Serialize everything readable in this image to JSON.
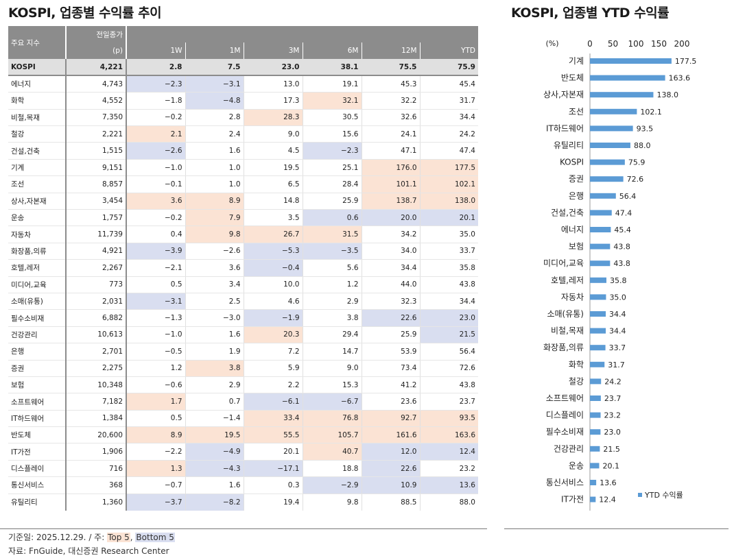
{
  "left_title": "KOSPI, 업종별 수익률 추이",
  "right_title": "KOSPI, 업종별 YTD 수익률",
  "table": {
    "header": {
      "name": "주요 지수",
      "close_top": "전일종가",
      "close_unit": "(p)",
      "periods": [
        "1W",
        "1M",
        "3M",
        "6M",
        "12M",
        "YTD"
      ]
    },
    "rows": [
      {
        "name": "KOSPI",
        "close": "4,221",
        "vals": [
          "2.8",
          "7.5",
          "23.0",
          "38.1",
          "75.5",
          "75.9"
        ],
        "hl": [
          "",
          "",
          "",
          "",
          "",
          ""
        ]
      },
      {
        "name": "에너지",
        "close": "4,743",
        "vals": [
          "−2.3",
          "−3.1",
          "13.0",
          "19.1",
          "45.3",
          "45.4"
        ],
        "hl": [
          "bot",
          "bot",
          "",
          "",
          "",
          ""
        ]
      },
      {
        "name": "화학",
        "close": "4,552",
        "vals": [
          "−1.8",
          "−4.8",
          "17.3",
          "32.1",
          "32.2",
          "31.7"
        ],
        "hl": [
          "",
          "bot",
          "",
          "top",
          "",
          ""
        ]
      },
      {
        "name": "비철,목재",
        "close": "7,350",
        "vals": [
          "−0.2",
          "2.8",
          "28.3",
          "30.5",
          "32.6",
          "34.4"
        ],
        "hl": [
          "",
          "",
          "top",
          "",
          "",
          ""
        ]
      },
      {
        "name": "철강",
        "close": "2,221",
        "vals": [
          "2.1",
          "2.4",
          "9.0",
          "15.6",
          "24.1",
          "24.2"
        ],
        "hl": [
          "top",
          "",
          "",
          "",
          "",
          ""
        ]
      },
      {
        "name": "건설,건축",
        "close": "1,515",
        "vals": [
          "−2.6",
          "1.6",
          "4.5",
          "−2.3",
          "47.1",
          "47.4"
        ],
        "hl": [
          "bot",
          "",
          "",
          "bot",
          "",
          ""
        ]
      },
      {
        "name": "기계",
        "close": "9,151",
        "vals": [
          "−1.0",
          "1.0",
          "19.5",
          "25.1",
          "176.0",
          "177.5"
        ],
        "hl": [
          "",
          "",
          "",
          "",
          "top",
          "top"
        ]
      },
      {
        "name": "조선",
        "close": "8,857",
        "vals": [
          "−0.1",
          "1.0",
          "6.5",
          "28.4",
          "101.1",
          "102.1"
        ],
        "hl": [
          "",
          "",
          "",
          "",
          "top",
          "top"
        ]
      },
      {
        "name": "상사,자본재",
        "close": "3,454",
        "vals": [
          "3.6",
          "8.9",
          "14.8",
          "25.9",
          "138.7",
          "138.0"
        ],
        "hl": [
          "top",
          "top",
          "",
          "",
          "top",
          "top"
        ]
      },
      {
        "name": "운송",
        "close": "1,757",
        "vals": [
          "−0.2",
          "7.9",
          "3.5",
          "0.6",
          "20.0",
          "20.1"
        ],
        "hl": [
          "",
          "top",
          "",
          "bot",
          "bot",
          "bot"
        ]
      },
      {
        "name": "자동차",
        "close": "11,739",
        "vals": [
          "0.4",
          "9.8",
          "26.7",
          "31.5",
          "34.2",
          "35.0"
        ],
        "hl": [
          "",
          "top",
          "top",
          "top",
          "",
          ""
        ]
      },
      {
        "name": "화장품,의류",
        "close": "4,921",
        "vals": [
          "−3.9",
          "−2.6",
          "−5.3",
          "−3.5",
          "34.0",
          "33.7"
        ],
        "hl": [
          "bot",
          "",
          "bot",
          "bot",
          "",
          ""
        ]
      },
      {
        "name": "호텔,레저",
        "close": "2,267",
        "vals": [
          "−2.1",
          "3.6",
          "−0.4",
          "5.6",
          "34.4",
          "35.8"
        ],
        "hl": [
          "",
          "",
          "bot",
          "",
          "",
          ""
        ]
      },
      {
        "name": "미디어,교육",
        "close": "773",
        "vals": [
          "0.5",
          "3.4",
          "10.0",
          "1.2",
          "44.0",
          "43.8"
        ],
        "hl": [
          "",
          "",
          "",
          "",
          "",
          ""
        ]
      },
      {
        "name": "소매(유통)",
        "close": "2,031",
        "vals": [
          "−3.1",
          "2.5",
          "4.6",
          "2.9",
          "32.3",
          "34.4"
        ],
        "hl": [
          "bot",
          "",
          "",
          "",
          "",
          ""
        ]
      },
      {
        "name": "필수소비재",
        "close": "6,882",
        "vals": [
          "−1.3",
          "−3.0",
          "−1.9",
          "3.8",
          "22.6",
          "23.0"
        ],
        "hl": [
          "",
          "",
          "bot",
          "",
          "bot",
          "bot"
        ]
      },
      {
        "name": "건강관리",
        "close": "10,613",
        "vals": [
          "−1.0",
          "1.6",
          "20.3",
          "29.4",
          "25.9",
          "21.5"
        ],
        "hl": [
          "",
          "",
          "top",
          "",
          "",
          "bot"
        ]
      },
      {
        "name": "은행",
        "close": "2,701",
        "vals": [
          "−0.5",
          "1.9",
          "7.2",
          "14.7",
          "53.9",
          "56.4"
        ],
        "hl": [
          "",
          "",
          "",
          "",
          "",
          ""
        ]
      },
      {
        "name": "증권",
        "close": "2,275",
        "vals": [
          "1.2",
          "3.8",
          "5.9",
          "9.0",
          "73.4",
          "72.6"
        ],
        "hl": [
          "",
          "top",
          "",
          "",
          "",
          ""
        ]
      },
      {
        "name": "보험",
        "close": "10,348",
        "vals": [
          "−0.6",
          "2.9",
          "2.2",
          "15.3",
          "41.2",
          "43.8"
        ],
        "hl": [
          "",
          "",
          "",
          "",
          "",
          ""
        ]
      },
      {
        "name": "소프트웨어",
        "close": "7,182",
        "vals": [
          "1.7",
          "0.7",
          "−6.1",
          "−6.7",
          "23.6",
          "23.7"
        ],
        "hl": [
          "top",
          "",
          "bot",
          "bot",
          "",
          ""
        ]
      },
      {
        "name": "IT하드웨어",
        "close": "1,384",
        "vals": [
          "0.5",
          "−1.4",
          "33.4",
          "76.8",
          "92.7",
          "93.5"
        ],
        "hl": [
          "",
          "",
          "top",
          "top",
          "top",
          "top"
        ]
      },
      {
        "name": "반도체",
        "close": "20,600",
        "vals": [
          "8.9",
          "19.5",
          "55.5",
          "105.7",
          "161.6",
          "163.6"
        ],
        "hl": [
          "top",
          "top",
          "top",
          "top",
          "top",
          "top"
        ]
      },
      {
        "name": "IT가전",
        "close": "1,906",
        "vals": [
          "−2.2",
          "−4.9",
          "20.1",
          "40.7",
          "12.0",
          "12.4"
        ],
        "hl": [
          "",
          "bot",
          "",
          "top",
          "bot",
          "bot"
        ]
      },
      {
        "name": "디스플레이",
        "close": "716",
        "vals": [
          "1.3",
          "−4.3",
          "−17.1",
          "18.8",
          "22.6",
          "23.2"
        ],
        "hl": [
          "top",
          "bot",
          "bot",
          "",
          "bot",
          ""
        ]
      },
      {
        "name": "통신서비스",
        "close": "368",
        "vals": [
          "−0.7",
          "1.6",
          "0.3",
          "−2.9",
          "10.9",
          "13.6"
        ],
        "hl": [
          "",
          "",
          "",
          "bot",
          "bot",
          "bot"
        ]
      },
      {
        "name": "유틸리티",
        "close": "1,360",
        "vals": [
          "−3.7",
          "−8.2",
          "19.4",
          "9.8",
          "88.5",
          "88.0"
        ],
        "hl": [
          "bot",
          "bot",
          "",
          "",
          "",
          ""
        ]
      }
    ]
  },
  "footnote": {
    "prefix": "기준일: 2025.12.29. / 주: ",
    "top": "Top 5",
    "sep": ", ",
    "bottom": "Bottom 5"
  },
  "source": "자료: FnGuide, 대신증권 Research Center",
  "colors": {
    "top": "#fbe3d4",
    "bottom": "#d9def0",
    "bar": "#5b9bd5",
    "header": "#8c8c8c"
  },
  "chart_data": {
    "type": "bar",
    "orientation": "horizontal",
    "title": "KOSPI, 업종별 YTD 수익률",
    "unit_label": "(%)",
    "xlim": [
      0,
      200
    ],
    "ticks": [
      0,
      50,
      100,
      150,
      200
    ],
    "legend": "YTD 수익률",
    "legend_position": "bottom-right",
    "categories": [
      "기계",
      "반도체",
      "상사,자본재",
      "조선",
      "IT하드웨어",
      "유틸리티",
      "KOSPI",
      "증권",
      "은행",
      "건설,건축",
      "에너지",
      "보험",
      "미디어,교육",
      "호텔,레저",
      "자동차",
      "소매(유통)",
      "비철,목재",
      "화장품,의류",
      "화학",
      "철강",
      "소프트웨어",
      "디스플레이",
      "필수소비재",
      "건강관리",
      "운송",
      "통신서비스",
      "IT가전"
    ],
    "values": [
      177.5,
      163.6,
      138.0,
      102.1,
      93.5,
      88.0,
      75.9,
      72.6,
      56.4,
      47.4,
      45.4,
      43.8,
      43.8,
      35.8,
      35.0,
      34.4,
      34.4,
      33.7,
      31.7,
      24.2,
      23.7,
      23.2,
      23.0,
      21.5,
      20.1,
      13.6,
      12.4
    ],
    "labels": [
      "177.5",
      "163.6",
      "138.0",
      "102.1",
      "93.5",
      "88.0",
      "75.9",
      "72.6",
      "56.4",
      "47.4",
      "45.4",
      "43.8",
      "43.8",
      "35.8",
      "35.0",
      "34.4",
      "34.4",
      "33.7",
      "31.7",
      "24.2",
      "23.7",
      "23.2",
      "23.0",
      "21.5",
      "20.1",
      "13.6",
      "12.4"
    ]
  }
}
